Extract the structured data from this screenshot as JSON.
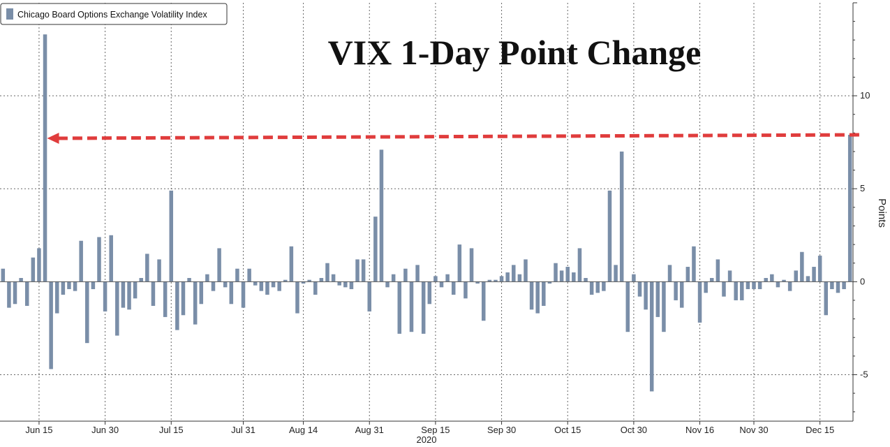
{
  "chart_data": {
    "type": "bar",
    "title": "VIX 1-Day Point Change",
    "ylabel": "Points",
    "xlabel": "2020",
    "legend": {
      "placement": "top-left",
      "entries": [
        "Chicago Board Options Exchange Volatility Index"
      ]
    },
    "ylim": [
      -7.5,
      15
    ],
    "y_ticks": [
      10,
      5,
      0,
      -5
    ],
    "x_ticks": [
      {
        "label": "Jun 15",
        "index": 6
      },
      {
        "label": "Jun 30",
        "index": 17
      },
      {
        "label": "Jul 15",
        "index": 28
      },
      {
        "label": "Jul 31",
        "index": 40
      },
      {
        "label": "Aug 14",
        "index": 50
      },
      {
        "label": "Aug 31",
        "index": 61
      },
      {
        "label": "Sep 15",
        "index": 72
      },
      {
        "label": "Sep 30",
        "index": 83
      },
      {
        "label": "Oct 15",
        "index": 94
      },
      {
        "label": "Oct 30",
        "index": 105
      },
      {
        "label": "Nov 16",
        "index": 116
      },
      {
        "label": "Nov 30",
        "index": 125
      },
      {
        "label": "Dec 15",
        "index": 136
      }
    ],
    "grid": true,
    "bar_color": "#7a8ea8",
    "series": [
      {
        "name": "Chicago Board Options Exchange Volatility Index",
        "values": [
          0.7,
          -1.4,
          -1.2,
          0.2,
          -1.3,
          1.3,
          1.8,
          13.3,
          -4.7,
          -1.7,
          -0.7,
          -0.4,
          -0.5,
          2.2,
          -3.3,
          -0.4,
          2.4,
          -1.6,
          2.5,
          -2.9,
          -1.4,
          -1.5,
          -0.9,
          0.2,
          1.5,
          -1.3,
          1.2,
          -1.9,
          4.9,
          -2.6,
          -1.8,
          0.2,
          -2.3,
          -1.2,
          0.4,
          -0.5,
          1.8,
          -0.3,
          -1.2,
          0.7,
          -1.4,
          0.7,
          -0.2,
          -0.5,
          -0.7,
          -0.3,
          -0.5,
          0.1,
          1.9,
          -1.7,
          -0.1,
          0.1,
          -0.7,
          0.2,
          1.0,
          0.4,
          -0.2,
          -0.3,
          -0.4,
          1.2,
          1.2,
          -1.6,
          3.5,
          7.1,
          -0.3,
          0.4,
          -2.8,
          0.7,
          -2.7,
          0.9,
          -2.8,
          -1.2,
          0.3,
          -0.3,
          0.4,
          -0.7,
          2.0,
          -0.9,
          1.8,
          -0.1,
          -2.1,
          0.1,
          0.1,
          0.3,
          0.5,
          0.9,
          0.4,
          1.2,
          -1.5,
          -1.7,
          -1.3,
          -0.1,
          1.0,
          0.6,
          0.8,
          0.5,
          1.8,
          0.2,
          -0.7,
          -0.6,
          -0.5,
          4.9,
          0.9,
          7.0,
          -2.7,
          0.4,
          -0.8,
          -1.5,
          -5.9,
          -1.9,
          -2.7,
          0.9,
          -1.0,
          -1.4,
          0.8,
          1.9,
          -2.2,
          -0.6,
          0.2,
          1.2,
          -0.8,
          0.6,
          -1.0,
          -1.0,
          -0.4,
          -0.4,
          -0.4,
          0.2,
          0.4,
          -0.3,
          0.1,
          -0.5,
          0.6,
          1.6,
          0.3,
          0.8,
          1.4,
          -1.8,
          -0.4,
          -0.6,
          -0.4,
          7.9
        ]
      }
    ],
    "annotation": {
      "type": "dashed-arrow",
      "color": "#e03c3c",
      "from_index": 143,
      "to_index": 7,
      "value": 7.9
    }
  }
}
